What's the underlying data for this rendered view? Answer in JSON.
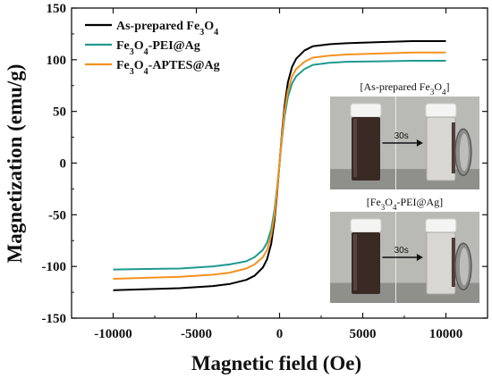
{
  "chart_data": {
    "type": "line",
    "title": "",
    "xlabel": "Magnetic field (Oe)",
    "ylabel": "Magnetization (emu/g)",
    "xlim": [
      -12500,
      12500
    ],
    "ylim": [
      -150,
      150
    ],
    "x_ticks": [
      -10000,
      -5000,
      0,
      5000,
      10000
    ],
    "y_ticks": [
      -150,
      -100,
      -50,
      0,
      50,
      100,
      150
    ],
    "grid": false,
    "legend_position": "top-left",
    "series": [
      {
        "name": "As-prepared Fe3O4",
        "legend": {
          "base": "As-prepared Fe",
          "sub": "3",
          "mid": "O",
          "sub2": "4",
          "tail": ""
        },
        "color": "#000000",
        "ms": 118,
        "x": [
          -10000,
          -8000,
          -6000,
          -4000,
          -3000,
          -2000,
          -1500,
          -1000,
          -750,
          -500,
          -300,
          -150,
          0,
          150,
          300,
          500,
          750,
          1000,
          1500,
          2000,
          3000,
          4000,
          6000,
          8000,
          10000
        ],
        "y": [
          -123,
          -122,
          -121,
          -119,
          -117,
          -113,
          -109,
          -101,
          -93,
          -78,
          -55,
          -30,
          0,
          30,
          55,
          78,
          93,
          101,
          109,
          113,
          115,
          116,
          117,
          118,
          118
        ]
      },
      {
        "name": "Fe3O4-PEI@Ag",
        "legend": {
          "base": "Fe",
          "sub": "3",
          "mid": "O",
          "sub2": "4",
          "tail": "-PEI@Ag"
        },
        "color": "#1f9a8f",
        "ms": 99,
        "x": [
          -10000,
          -8000,
          -6000,
          -4000,
          -3000,
          -2000,
          -1500,
          -1000,
          -750,
          -500,
          -300,
          -150,
          0,
          150,
          300,
          500,
          750,
          1000,
          1500,
          2000,
          3000,
          4000,
          6000,
          8000,
          10000
        ],
        "y": [
          -103,
          -102.5,
          -102,
          -100,
          -98,
          -95,
          -91,
          -84,
          -77,
          -64,
          -45,
          -24,
          0,
          24,
          45,
          64,
          77,
          84,
          91,
          95,
          97,
          98,
          98.5,
          99,
          99
        ]
      },
      {
        "name": "Fe3O4-APTES@Ag",
        "legend": {
          "base": "Fe",
          "sub": "3",
          "mid": "O",
          "sub2": "4",
          "tail": "-APTES@Ag"
        },
        "color": "#f5921e",
        "ms": 107,
        "x": [
          -10000,
          -8000,
          -6000,
          -4000,
          -3000,
          -2000,
          -1500,
          -1000,
          -750,
          -500,
          -300,
          -150,
          0,
          150,
          300,
          500,
          750,
          1000,
          1500,
          2000,
          3000,
          4000,
          6000,
          8000,
          10000
        ],
        "y": [
          -112,
          -111,
          -110,
          -108,
          -106,
          -102,
          -98,
          -91,
          -84,
          -70,
          -50,
          -27,
          0,
          27,
          50,
          70,
          84,
          91,
          98,
          102,
          104,
          105,
          106,
          107,
          107
        ]
      }
    ],
    "insets": [
      {
        "caption": {
          "pre": "[As-prepared Fe",
          "sub1": "3",
          "mid": "O",
          "sub2": "4",
          "post": "]"
        },
        "time_label": "30s"
      },
      {
        "caption": {
          "pre": "[Fe",
          "sub1": "3",
          "mid": "O",
          "sub2": "4",
          "post": "-PEI@Ag]"
        },
        "time_label": "30s"
      }
    ]
  }
}
